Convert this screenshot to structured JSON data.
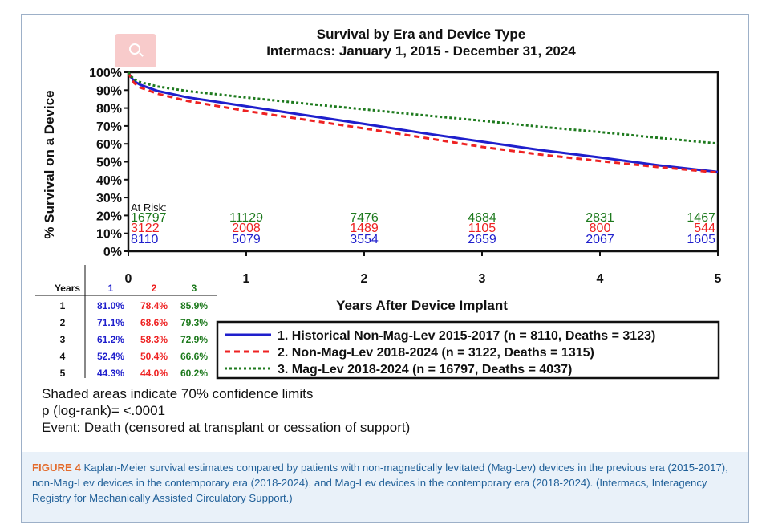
{
  "chart_data": {
    "type": "line",
    "title": "Survival by Era and Device Type",
    "subtitle": "Intermacs: January 1, 2015 - December 31, 2024",
    "xlabel": "Years After Device Implant",
    "ylabel": "% Survival on a Device",
    "xlim": [
      0,
      5
    ],
    "ylim": [
      0,
      100
    ],
    "x_ticks": [
      "0",
      "1",
      "2",
      "3",
      "4",
      "5"
    ],
    "y_ticks": [
      "0%",
      "10%",
      "20%",
      "30%",
      "40%",
      "50%",
      "60%",
      "70%",
      "80%",
      "90%",
      "100%"
    ],
    "series": [
      {
        "name": "1. Historical Non-Mag-Lev 2015-2017 (n = 8110, Deaths = 3123)",
        "color": "#1f1fcc",
        "dash": "solid",
        "x": [
          0,
          0.02,
          0.05,
          0.1,
          0.25,
          0.5,
          1,
          1.5,
          2,
          2.5,
          3,
          3.5,
          4,
          4.5,
          5
        ],
        "y": [
          100,
          97.5,
          95,
          93,
          89.5,
          86,
          81,
          76,
          71.1,
          66,
          61.2,
          56.5,
          52.4,
          48,
          44.3
        ]
      },
      {
        "name": "2. Non-Mag-Lev 2018-2024 (n = 3122, Deaths = 1315)",
        "color": "#ee2222",
        "dash": "dashed",
        "x": [
          0,
          0.02,
          0.05,
          0.1,
          0.25,
          0.5,
          1,
          1.5,
          2,
          2.5,
          3,
          3.5,
          4,
          4.5,
          5
        ],
        "y": [
          100,
          97,
          94,
          91.5,
          88,
          84,
          78.4,
          73.5,
          68.6,
          63.5,
          58.3,
          54,
          50.4,
          47,
          44.0
        ]
      },
      {
        "name": "3. Mag-Lev 2018-2024 (n = 16797, Deaths = 4037)",
        "color": "#1e7a1e",
        "dash": "dotted",
        "x": [
          0,
          0.02,
          0.05,
          0.1,
          0.25,
          0.5,
          1,
          1.5,
          2,
          2.5,
          3,
          3.5,
          4,
          4.5,
          5
        ],
        "y": [
          100,
          98,
          96,
          94.5,
          92,
          89.5,
          85.9,
          82.5,
          79.3,
          76,
          72.9,
          69.5,
          66.6,
          63.3,
          60.2
        ]
      }
    ],
    "at_risk": {
      "label": "At Risk:",
      "times": [
        0,
        1,
        2,
        3,
        4,
        5
      ],
      "rows": [
        {
          "series": 3,
          "color": "#1e7a1e",
          "values": [
            "16797",
            "11129",
            "7476",
            "4684",
            "2831",
            "1467"
          ]
        },
        {
          "series": 2,
          "color": "#ee2222",
          "values": [
            "3122",
            "2008",
            "1489",
            "1105",
            "800",
            "544"
          ]
        },
        {
          "series": 1,
          "color": "#1f1fcc",
          "values": [
            "8110",
            "5079",
            "3554",
            "2659",
            "2067",
            "1605"
          ]
        }
      ]
    },
    "table": {
      "headers": [
        "Years",
        "1",
        "2",
        "3"
      ],
      "header_colors": [
        "#111111",
        "#1f1fcc",
        "#ee2222",
        "#1e7a1e"
      ],
      "rows": [
        [
          "1",
          "81.0%",
          "78.4%",
          "85.9%"
        ],
        [
          "2",
          "71.1%",
          "68.6%",
          "79.3%"
        ],
        [
          "3",
          "61.2%",
          "58.3%",
          "72.9%"
        ],
        [
          "4",
          "52.4%",
          "50.4%",
          "66.6%"
        ],
        [
          "5",
          "44.3%",
          "44.0%",
          "60.2%"
        ]
      ]
    },
    "legend_position": "bottom-right"
  },
  "notes": [
    "Shaded areas indicate 70% confidence limits",
    "p (log-rank)= <.0001",
    "Event: Death (censored at transplant or cessation of support)"
  ],
  "caption": {
    "label": "FIGURE 4",
    "text": "Kaplan-Meier survival estimates compared by patients with non-magnetically levitated (Mag-Lev) devices in the previous era (2015-2017), non-Mag-Lev devices in the contemporary era (2018-2024), and Mag-Lev devices in the contemporary era (2018-2024). (Intermacs, Interagency Registry for Mechanically Assisted Circulatory Support.)"
  },
  "icons": {
    "overlay": "search-icon"
  }
}
